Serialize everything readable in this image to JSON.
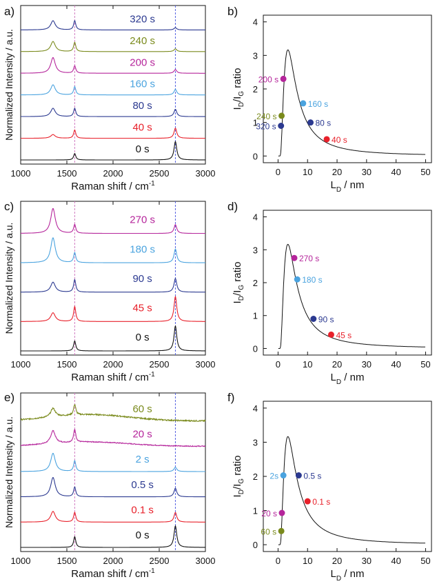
{
  "figure": {
    "colors": {
      "black": "#111111",
      "red": "#e8202a",
      "navy": "#2b3990",
      "light_blue": "#4aa3df",
      "magenta": "#b5259b",
      "olive": "#7a8a1c",
      "ref_line_magenta": "#d07ac0",
      "ref_line_blue": "#5560e0"
    }
  },
  "chart_data": [
    {
      "panel": "a)",
      "type": "line",
      "xlabel": "Raman shift / cm",
      "xlabel_sup": "-1",
      "ylabel": "Normalized Intensity / a.u.",
      "xlim": [
        1000,
        3000
      ],
      "xticks": [
        1000,
        1500,
        2000,
        2500,
        3000
      ],
      "reference_lines_x": [
        1585,
        2675
      ],
      "series": [
        {
          "name": "0 s",
          "color": "black",
          "peaks": [
            [
              1350,
              0.0
            ],
            [
              1585,
              0.35
            ],
            [
              2675,
              1.0
            ]
          ],
          "noise": 0.0
        },
        {
          "name": "40 s",
          "color": "red",
          "peaks": [
            [
              1350,
              0.2
            ],
            [
              1585,
              0.45
            ],
            [
              2675,
              0.55
            ]
          ],
          "noise": 0.0
        },
        {
          "name": "80 s",
          "color": "navy",
          "peaks": [
            [
              1350,
              0.45
            ],
            [
              1585,
              0.45
            ],
            [
              2675,
              0.4
            ]
          ],
          "noise": 0.0
        },
        {
          "name": "160 s",
          "color": "light_blue",
          "peaks": [
            [
              1350,
              0.55
            ],
            [
              1585,
              0.45
            ],
            [
              2675,
              0.3
            ]
          ],
          "noise": 0.0
        },
        {
          "name": "200 s",
          "color": "magenta",
          "peaks": [
            [
              1350,
              0.85
            ],
            [
              1585,
              0.4
            ],
            [
              2675,
              0.2
            ]
          ],
          "noise": 0.0
        },
        {
          "name": "240 s",
          "color": "olive",
          "peaks": [
            [
              1350,
              0.55
            ],
            [
              1585,
              0.5
            ],
            [
              2675,
              0.15
            ]
          ],
          "noise": 0.0
        },
        {
          "name": "320 s",
          "color": "navy",
          "peaks": [
            [
              1350,
              0.5
            ],
            [
              1585,
              0.5
            ],
            [
              2675,
              0.12
            ]
          ],
          "noise": 0.0
        }
      ]
    },
    {
      "panel": "b)",
      "type": "scatter",
      "xlabel": "L",
      "xlabel_sub": "D",
      "xlabel_unit": " / nm",
      "ylabel": "I_D/I_G ratio",
      "xlim": [
        -5,
        52
      ],
      "ylim": [
        -0.2,
        4.2
      ],
      "xticks": [
        0,
        10,
        20,
        30,
        40,
        50
      ],
      "yticks": [
        0,
        1,
        2,
        3,
        4
      ],
      "points": [
        {
          "label": "200 s",
          "x": 1.8,
          "y": 2.3,
          "color": "magenta",
          "side": "left"
        },
        {
          "label": "240 s",
          "x": 1.2,
          "y": 1.2,
          "color": "olive",
          "side": "left"
        },
        {
          "label": "320 s",
          "x": 1.0,
          "y": 0.9,
          "color": "navy",
          "side": "left"
        },
        {
          "label": "160 s",
          "x": 8.5,
          "y": 1.57,
          "color": "light_blue",
          "side": "right"
        },
        {
          "label": "80 s",
          "x": 11.0,
          "y": 1.0,
          "color": "navy",
          "side": "right"
        },
        {
          "label": "40 s",
          "x": 16.5,
          "y": 0.5,
          "color": "red",
          "side": "right"
        }
      ]
    },
    {
      "panel": "c)",
      "type": "line",
      "xlabel": "Raman shift / cm",
      "xlabel_sup": "-1",
      "ylabel": "Normalized Intensity / a.u.",
      "xlim": [
        1000,
        3000
      ],
      "xticks": [
        1000,
        1500,
        2000,
        2500,
        3000
      ],
      "reference_lines_x": [
        1585,
        2675
      ],
      "series": [
        {
          "name": "0 s",
          "color": "black",
          "peaks": [
            [
              1350,
              0.0
            ],
            [
              1585,
              0.4
            ],
            [
              2675,
              1.0
            ]
          ],
          "noise": 0.0
        },
        {
          "name": "45 s",
          "color": "red",
          "peaks": [
            [
              1350,
              0.35
            ],
            [
              1585,
              0.6
            ],
            [
              2675,
              1.0
            ]
          ],
          "noise": 0.0
        },
        {
          "name": "90 s",
          "color": "navy",
          "peaks": [
            [
              1350,
              0.4
            ],
            [
              1585,
              0.5
            ],
            [
              2675,
              0.55
            ]
          ],
          "noise": 0.0
        },
        {
          "name": "180 s",
          "color": "light_blue",
          "peaks": [
            [
              1350,
              1.0
            ],
            [
              1585,
              0.4
            ],
            [
              2675,
              0.55
            ]
          ],
          "noise": 0.0
        },
        {
          "name": "270 s",
          "color": "magenta",
          "peaks": [
            [
              1350,
              1.0
            ],
            [
              1585,
              0.35
            ],
            [
              2675,
              0.35
            ]
          ],
          "noise": 0.0
        }
      ]
    },
    {
      "panel": "d)",
      "type": "scatter",
      "xlabel": "L",
      "xlabel_sub": "D",
      "xlabel_unit": " / nm",
      "ylabel": "I_D/I_G ratio",
      "xlim": [
        -5,
        52
      ],
      "ylim": [
        -0.2,
        4.2
      ],
      "xticks": [
        0,
        10,
        20,
        30,
        40,
        50
      ],
      "yticks": [
        0,
        1,
        2,
        3,
        4
      ],
      "points": [
        {
          "label": "270 s",
          "x": 5.5,
          "y": 2.75,
          "color": "magenta",
          "side": "right"
        },
        {
          "label": "180 s",
          "x": 6.5,
          "y": 2.1,
          "color": "light_blue",
          "side": "right"
        },
        {
          "label": "90 s",
          "x": 12.0,
          "y": 0.9,
          "color": "navy",
          "side": "right"
        },
        {
          "label": "45 s",
          "x": 18.0,
          "y": 0.42,
          "color": "red",
          "side": "right"
        }
      ]
    },
    {
      "panel": "e)",
      "type": "line",
      "xlabel": "Raman shift / cm",
      "xlabel_sup": "-1",
      "ylabel": "Normalized Intensity / a.u.",
      "xlim": [
        1000,
        3000
      ],
      "xticks": [
        1000,
        1500,
        2000,
        2500,
        3000
      ],
      "reference_lines_x": [
        1585,
        2675
      ],
      "series": [
        {
          "name": "0 s",
          "color": "black",
          "peaks": [
            [
              1350,
              0.0
            ],
            [
              1585,
              0.5
            ],
            [
              2675,
              1.0
            ]
          ],
          "noise": 0.0
        },
        {
          "name": "0.1 s",
          "color": "red",
          "peaks": [
            [
              1350,
              0.5
            ],
            [
              1585,
              0.45
            ],
            [
              2675,
              0.45
            ]
          ],
          "noise": 0.0
        },
        {
          "name": "0.5 s",
          "color": "navy",
          "peaks": [
            [
              1350,
              0.9
            ],
            [
              1585,
              0.45
            ],
            [
              2675,
              0.4
            ]
          ],
          "noise": 0.0
        },
        {
          "name": "2 s",
          "color": "light_blue",
          "peaks": [
            [
              1350,
              0.85
            ],
            [
              1585,
              0.5
            ],
            [
              2675,
              0.2
            ]
          ],
          "noise": 0.0
        },
        {
          "name": "20 s",
          "color": "magenta",
          "peaks": [
            [
              1350,
              0.6
            ],
            [
              1585,
              0.6
            ],
            [
              2675,
              0.0
            ]
          ],
          "noise": 0.04
        },
        {
          "name": "60 s",
          "color": "olive",
          "peaks": [
            [
              1350,
              0.4
            ],
            [
              1585,
              0.5
            ],
            [
              2675,
              0.0
            ]
          ],
          "noise": 0.06
        }
      ]
    },
    {
      "panel": "f)",
      "type": "scatter",
      "xlabel": "L",
      "xlabel_sub": "D",
      "xlabel_unit": " / nm",
      "ylabel": "I_D/I_G ratio",
      "xlim": [
        -5,
        52
      ],
      "ylim": [
        -0.2,
        4.2
      ],
      "xticks": [
        0,
        10,
        20,
        30,
        40,
        50
      ],
      "yticks": [
        0,
        1,
        2,
        3,
        4
      ],
      "points": [
        {
          "label": "2s",
          "x": 1.8,
          "y": 2.03,
          "color": "light_blue",
          "side": "left"
        },
        {
          "label": "0.5 s",
          "x": 7.0,
          "y": 2.03,
          "color": "navy",
          "side": "right"
        },
        {
          "label": "0.1 s",
          "x": 10.0,
          "y": 1.27,
          "color": "red",
          "side": "right"
        },
        {
          "label": "20 s",
          "x": 1.3,
          "y": 0.93,
          "color": "magenta",
          "side": "left"
        },
        {
          "label": "60 s",
          "x": 1.1,
          "y": 0.4,
          "color": "olive",
          "side": "left"
        }
      ]
    }
  ]
}
